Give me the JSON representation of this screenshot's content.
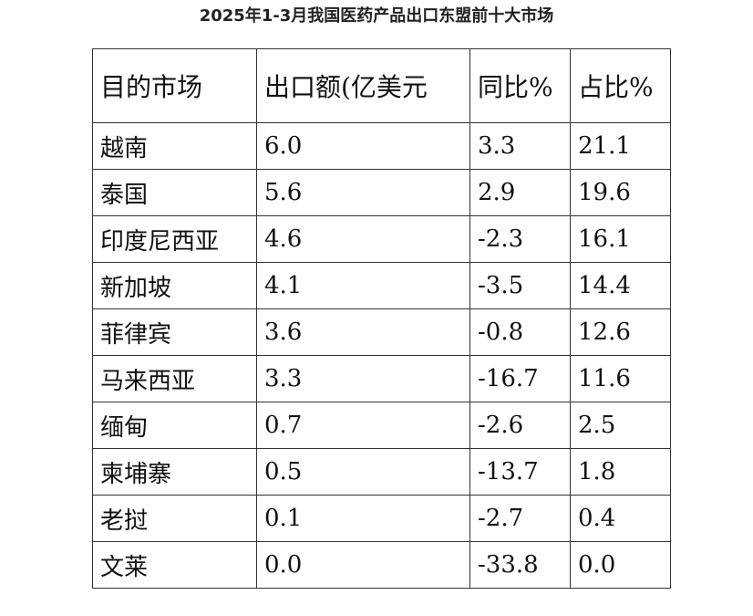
{
  "chart_data": {
    "type": "table",
    "title": "2025年1-3月我国医药产品出口东盟前十大市场",
    "columns": [
      "目的市场",
      "出口额(亿美元",
      "同比%",
      "占比%"
    ],
    "rows": [
      [
        "越南",
        "6.0",
        "3.3",
        "21.1"
      ],
      [
        "泰国",
        "5.6",
        "2.9",
        "19.6"
      ],
      [
        "印度尼西亚",
        "4.6",
        "-2.3",
        "16.1"
      ],
      [
        "新加坡",
        "4.1",
        "-3.5",
        "14.4"
      ],
      [
        "菲律宾",
        "3.6",
        "-0.8",
        "12.6"
      ],
      [
        "马来西亚",
        "3.3",
        "-16.7",
        "11.6"
      ],
      [
        "缅甸",
        "0.7",
        "-2.6",
        "2.5"
      ],
      [
        "柬埔寨",
        "0.5",
        "-13.7",
        "1.8"
      ],
      [
        "老挝",
        "0.1",
        "-2.7",
        "0.4"
      ],
      [
        "文莱",
        "0.0",
        "-33.8",
        "0.0"
      ]
    ]
  }
}
